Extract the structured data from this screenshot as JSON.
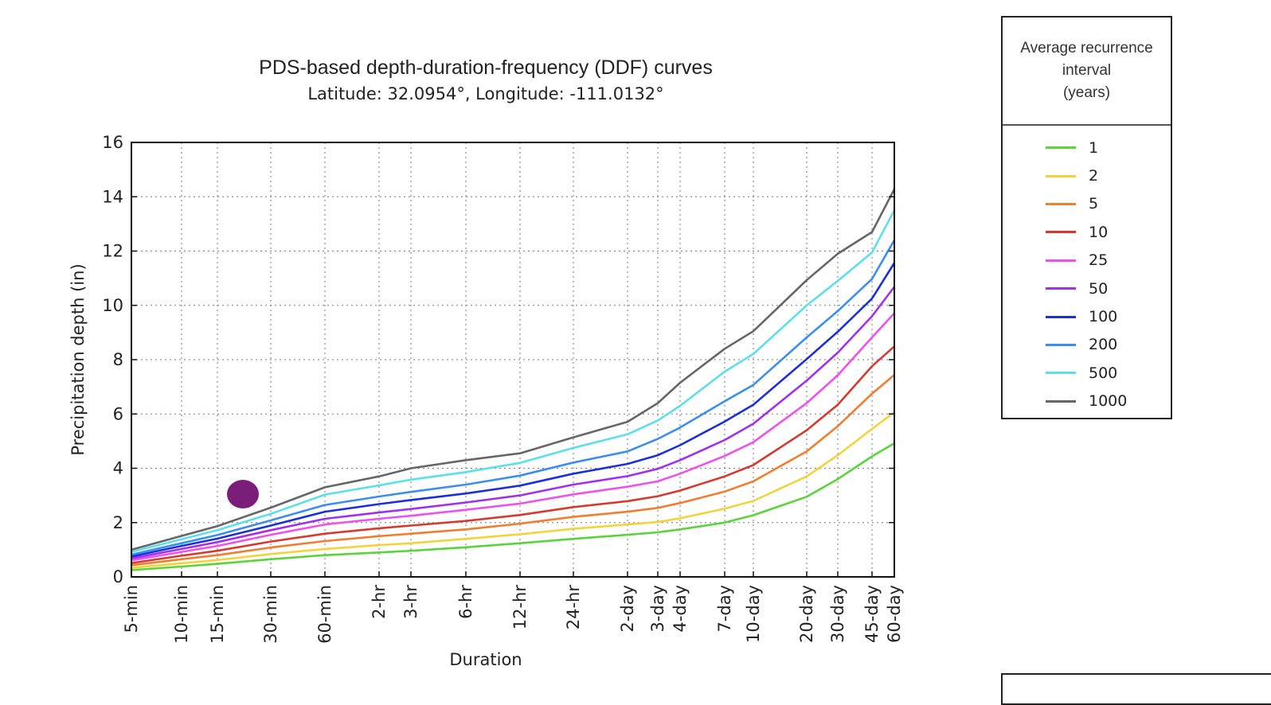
{
  "chart_data": {
    "type": "line",
    "title": "PDS-based depth-duration-frequency (DDF) curves",
    "subtitle": "Latitude: 32.0954°, Longitude: -111.0132°",
    "xlabel": "Duration",
    "ylabel": "Precipitation depth (in)",
    "ylim": [
      0,
      16
    ],
    "yticks": [
      "0",
      "2",
      "4",
      "6",
      "8",
      "10",
      "12",
      "14",
      "16"
    ],
    "grid": true,
    "legend_placement": "right",
    "categories": [
      "5-min",
      "10-min",
      "15-min",
      "30-min",
      "60-min",
      "2-hr",
      "3-hr",
      "6-hr",
      "12-hr",
      "24-hr",
      "2-day",
      "3-day",
      "4-day",
      "7-day",
      "10-day",
      "20-day",
      "30-day",
      "45-day",
      "60-day"
    ],
    "series": [
      {
        "name": "1",
        "color": "#5ad43a",
        "values": [
          0.25,
          0.38,
          0.48,
          0.65,
          0.8,
          0.9,
          0.96,
          1.09,
          1.24,
          1.4,
          1.55,
          1.64,
          1.75,
          2.0,
          2.27,
          2.95,
          3.6,
          4.44,
          4.92
        ]
      },
      {
        "name": "2",
        "color": "#f2d43a",
        "values": [
          0.33,
          0.5,
          0.62,
          0.84,
          1.03,
          1.17,
          1.24,
          1.4,
          1.57,
          1.77,
          1.93,
          2.02,
          2.16,
          2.51,
          2.8,
          3.7,
          4.48,
          5.45,
          6.07
        ]
      },
      {
        "name": "5",
        "color": "#f07e2e",
        "values": [
          0.43,
          0.65,
          0.8,
          1.08,
          1.32,
          1.5,
          1.59,
          1.75,
          1.96,
          2.21,
          2.4,
          2.54,
          2.72,
          3.14,
          3.52,
          4.62,
          5.55,
          6.75,
          7.44
        ]
      },
      {
        "name": "10",
        "color": "#d63a2e",
        "values": [
          0.51,
          0.78,
          0.96,
          1.3,
          1.59,
          1.79,
          1.89,
          2.06,
          2.28,
          2.57,
          2.79,
          2.97,
          3.18,
          3.7,
          4.12,
          5.4,
          6.34,
          7.76,
          8.49
        ]
      },
      {
        "name": "25",
        "color": "#ee50ee",
        "values": [
          0.61,
          0.92,
          1.14,
          1.55,
          1.93,
          2.14,
          2.25,
          2.47,
          2.7,
          3.04,
          3.32,
          3.52,
          3.8,
          4.45,
          4.96,
          6.4,
          7.43,
          8.82,
          9.71
        ]
      },
      {
        "name": "50",
        "color": "#a030ee",
        "values": [
          0.68,
          1.03,
          1.28,
          1.72,
          2.14,
          2.37,
          2.5,
          2.74,
          3.0,
          3.4,
          3.71,
          3.98,
          4.3,
          5.04,
          5.64,
          7.23,
          8.26,
          9.6,
          10.68
        ]
      },
      {
        "name": "100",
        "color": "#1c30d8",
        "values": [
          0.75,
          1.14,
          1.41,
          1.89,
          2.4,
          2.68,
          2.83,
          3.07,
          3.36,
          3.8,
          4.16,
          4.48,
          4.85,
          5.72,
          6.34,
          8.02,
          9.03,
          10.25,
          11.56
        ]
      },
      {
        "name": "200",
        "color": "#3a8ef0",
        "values": [
          0.82,
          1.24,
          1.54,
          2.08,
          2.65,
          2.96,
          3.13,
          3.4,
          3.73,
          4.21,
          4.62,
          5.08,
          5.5,
          6.47,
          7.07,
          8.82,
          9.79,
          10.97,
          12.4
        ]
      },
      {
        "name": "500",
        "color": "#5ae0ec",
        "values": [
          0.92,
          1.39,
          1.72,
          2.32,
          3.03,
          3.37,
          3.58,
          3.86,
          4.2,
          4.75,
          5.25,
          5.76,
          6.3,
          7.56,
          8.21,
          10.0,
          10.9,
          11.95,
          13.5
        ]
      },
      {
        "name": "1000",
        "color": "#666666",
        "values": [
          1.0,
          1.51,
          1.87,
          2.55,
          3.3,
          3.7,
          4.0,
          4.3,
          4.55,
          5.14,
          5.71,
          6.4,
          7.15,
          8.4,
          9.05,
          10.93,
          11.9,
          12.7,
          14.28
        ]
      }
    ]
  },
  "legend": {
    "title_lines": [
      "Average recurrence",
      "interval",
      "(years)"
    ]
  },
  "colors": {
    "marker": "#7b1e7a"
  }
}
